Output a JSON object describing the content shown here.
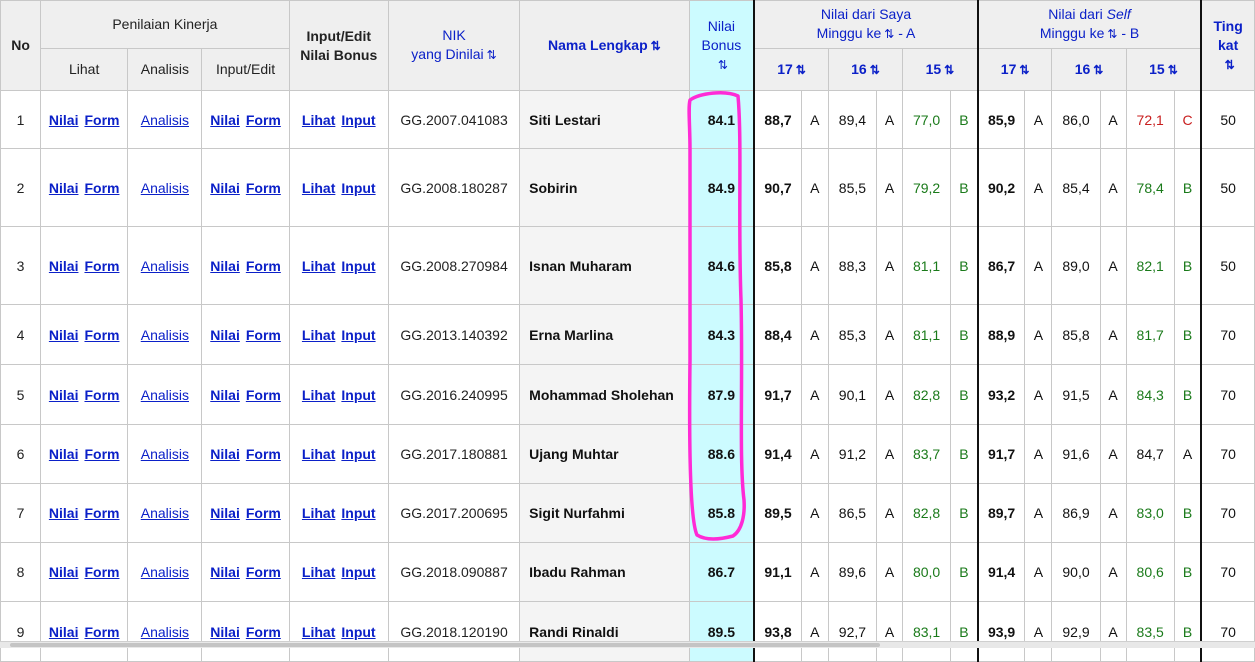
{
  "headers": {
    "no": "No",
    "penilaian": "Penilaian Kinerja",
    "lihat": "Lihat",
    "analisis": "Analisis",
    "input_edit": "Input/Edit",
    "bonus_line1": "Input/Edit",
    "bonus_line2": "Nilai Bonus",
    "nik_line1": "NIK",
    "nik_line2": "yang Dinilai",
    "nama": "Nama Lengkap",
    "nilai_bonus_line1": "Nilai",
    "nilai_bonus_line2": "Bonus",
    "saya_line1": "Nilai dari Saya",
    "saya_line2": "Minggu ke",
    "saya_suffix": "- A",
    "self_line1_a": "Nilai dari ",
    "self_line1_b": "Self",
    "self_line2": "Minggu ke",
    "self_suffix": "- B",
    "tingkat_line1": "Ting",
    "tingkat_line2": "kat",
    "weeks": [
      "17",
      "16",
      "15"
    ],
    "sort_icon": "⇅"
  },
  "links": {
    "nilai": "Nilai",
    "form": "Form",
    "analisis": "Analisis",
    "lihat": "Lihat",
    "input": "Input"
  },
  "colors": {
    "link": "#0b20c8",
    "bonus_bg": "#ccfbff",
    "grade_B": "#1a7a1a",
    "grade_C": "#c81e1e",
    "annotation": "#ff2bd6"
  },
  "rows": [
    {
      "no": "1",
      "nik": "GG.2007.041083",
      "name": "Siti Lestari",
      "bonus": "84.1",
      "saya": [
        [
          "88,7",
          "A"
        ],
        [
          "89,4",
          "A"
        ],
        [
          "77,0",
          "B"
        ]
      ],
      "self": [
        [
          "85,9",
          "A"
        ],
        [
          "86,0",
          "A"
        ],
        [
          "72,1",
          "C"
        ]
      ],
      "tingkat": "50"
    },
    {
      "no": "2",
      "nik": "GG.2008.180287",
      "name": "Sobirin",
      "bonus": "84.9",
      "saya": [
        [
          "90,7",
          "A"
        ],
        [
          "85,5",
          "A"
        ],
        [
          "79,2",
          "B"
        ]
      ],
      "self": [
        [
          "90,2",
          "A"
        ],
        [
          "85,4",
          "A"
        ],
        [
          "78,4",
          "B"
        ]
      ],
      "tingkat": "50"
    },
    {
      "no": "3",
      "nik": "GG.2008.270984",
      "name": "Isnan Muharam",
      "bonus": "84.6",
      "saya": [
        [
          "85,8",
          "A"
        ],
        [
          "88,3",
          "A"
        ],
        [
          "81,1",
          "B"
        ]
      ],
      "self": [
        [
          "86,7",
          "A"
        ],
        [
          "89,0",
          "A"
        ],
        [
          "82,1",
          "B"
        ]
      ],
      "tingkat": "50"
    },
    {
      "no": "4",
      "nik": "GG.2013.140392",
      "name": "Erna Marlina",
      "bonus": "84.3",
      "saya": [
        [
          "88,4",
          "A"
        ],
        [
          "85,3",
          "A"
        ],
        [
          "81,1",
          "B"
        ]
      ],
      "self": [
        [
          "88,9",
          "A"
        ],
        [
          "85,8",
          "A"
        ],
        [
          "81,7",
          "B"
        ]
      ],
      "tingkat": "70"
    },
    {
      "no": "5",
      "nik": "GG.2016.240995",
      "name": "Mohammad Sholehan",
      "bonus": "87.9",
      "saya": [
        [
          "91,7",
          "A"
        ],
        [
          "90,1",
          "A"
        ],
        [
          "82,8",
          "B"
        ]
      ],
      "self": [
        [
          "93,2",
          "A"
        ],
        [
          "91,5",
          "A"
        ],
        [
          "84,3",
          "B"
        ]
      ],
      "tingkat": "70"
    },
    {
      "no": "6",
      "nik": "GG.2017.180881",
      "name": "Ujang Muhtar",
      "bonus": "88.6",
      "saya": [
        [
          "91,4",
          "A"
        ],
        [
          "91,2",
          "A"
        ],
        [
          "83,7",
          "B"
        ]
      ],
      "self": [
        [
          "91,7",
          "A"
        ],
        [
          "91,6",
          "A"
        ],
        [
          "84,7",
          "A"
        ]
      ],
      "tingkat": "70"
    },
    {
      "no": "7",
      "nik": "GG.2017.200695",
      "name": "Sigit Nurfahmi",
      "bonus": "85.8",
      "saya": [
        [
          "89,5",
          "A"
        ],
        [
          "86,5",
          "A"
        ],
        [
          "82,8",
          "B"
        ]
      ],
      "self": [
        [
          "89,7",
          "A"
        ],
        [
          "86,9",
          "A"
        ],
        [
          "83,0",
          "B"
        ]
      ],
      "tingkat": "70"
    },
    {
      "no": "8",
      "nik": "GG.2018.090887",
      "name": "Ibadu Rahman",
      "bonus": "86.7",
      "saya": [
        [
          "91,1",
          "A"
        ],
        [
          "89,6",
          "A"
        ],
        [
          "80,0",
          "B"
        ]
      ],
      "self": [
        [
          "91,4",
          "A"
        ],
        [
          "90,0",
          "A"
        ],
        [
          "80,6",
          "B"
        ]
      ],
      "tingkat": "70"
    },
    {
      "no": "9",
      "nik": "GG.2018.120190",
      "name": "Randi Rinaldi",
      "bonus": "89.5",
      "saya": [
        [
          "93,8",
          "A"
        ],
        [
          "92,7",
          "A"
        ],
        [
          "83,1",
          "B"
        ]
      ],
      "self": [
        [
          "93,9",
          "A"
        ],
        [
          "92,9",
          "A"
        ],
        [
          "83,5",
          "B"
        ]
      ],
      "tingkat": "70"
    }
  ]
}
